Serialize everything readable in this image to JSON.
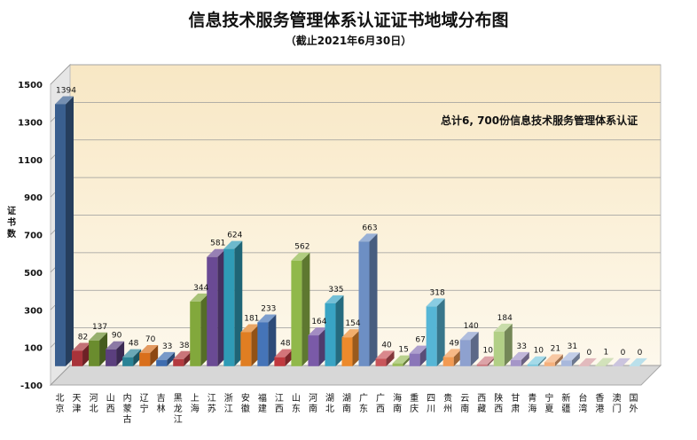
{
  "chart_data": {
    "type": "bar",
    "title": "信息技术服务管理体系认证证书地域分布图",
    "subtitle": "（截止2021年6月30日）",
    "ylabel": "证书数",
    "annotation": "总计6, 700份信息技术服务管理体系认证",
    "ylim": [
      -100,
      1500
    ],
    "yticks": [
      "-100",
      "100",
      "300",
      "500",
      "700",
      "900",
      "1100",
      "1300",
      "1500"
    ],
    "categories": [
      "北京",
      "天津",
      "河北",
      "山西",
      "内蒙古",
      "辽宁",
      "吉林",
      "黑龙江",
      "上海",
      "江苏",
      "浙江",
      "安徽",
      "福建",
      "江西",
      "山东",
      "河南",
      "湖北",
      "湖南",
      "广东",
      "广西",
      "海南",
      "重庆",
      "四川",
      "贵州",
      "云南",
      "西藏",
      "陕西",
      "甘肃",
      "青海",
      "宁夏",
      "新疆",
      "台湾",
      "香港",
      "澳门",
      "国外"
    ],
    "values": [
      1394,
      82,
      137,
      90,
      48,
      70,
      33,
      38,
      344,
      581,
      624,
      181,
      233,
      48,
      562,
      164,
      335,
      154,
      663,
      40,
      15,
      67,
      318,
      49,
      140,
      10,
      184,
      33,
      10,
      21,
      31,
      0,
      1,
      0,
      0
    ],
    "labels": [
      "1394",
      "82",
      "137",
      "90",
      "48",
      "70",
      "33",
      "38",
      "344",
      "581",
      "624",
      "181",
      "233",
      "48",
      "562",
      "164",
      "335",
      "154",
      "663",
      "40",
      "15",
      "67",
      "318",
      "49",
      "140",
      "10",
      "184",
      "33",
      "10",
      "21",
      "31",
      "0",
      "1",
      "0",
      "0"
    ],
    "colors": [
      "#3a5f8f",
      "#a8333a",
      "#6a8c2e",
      "#5b3f7e",
      "#2a8396",
      "#d96f1c",
      "#3e6db0",
      "#b33a3f",
      "#82a83c",
      "#6a4a94",
      "#2f9bb6",
      "#e07e22",
      "#4574b8",
      "#c0393f",
      "#90b84a",
      "#7a5aa8",
      "#39a4c4",
      "#ec8a2c",
      "#6d8fc4",
      "#c8555a",
      "#9bbd5c",
      "#8a76b8",
      "#56b6d6",
      "#f29a52",
      "#8ea1cf",
      "#cd7c82",
      "#b2cf86",
      "#a596c8",
      "#7dcadf",
      "#f5b07c",
      "#a8b8dc",
      "#d69ca0",
      "#bed59c",
      "#b4aad0",
      "#9cd2e2"
    ],
    "grid": true
  }
}
